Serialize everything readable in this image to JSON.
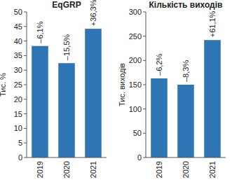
{
  "chart_data": [
    {
      "type": "bar",
      "title": "EqGRP",
      "y_label": "Тис. %",
      "categories": [
        "2019",
        "2020",
        "2021"
      ],
      "values": [
        38.3,
        32.4,
        44.2
      ],
      "annotations": [
        "–6,1%",
        "–15,5%",
        "+36,3%"
      ],
      "color": "#2e75b6",
      "ylim": [
        0,
        50
      ],
      "yticks": [
        0,
        5,
        10,
        15,
        20,
        25,
        30,
        35,
        40,
        45,
        50
      ]
    },
    {
      "type": "bar",
      "title": "Кількість виходів",
      "y_label": "Тис. виходів",
      "categories": [
        "2019",
        "2020",
        "2021"
      ],
      "values": [
        163,
        150,
        242
      ],
      "annotations": [
        "–6,2%",
        "–8,3%",
        "+61,1%"
      ],
      "color": "#2e75b6",
      "ylim": [
        0,
        300
      ],
      "yticks": [
        0,
        50,
        100,
        150,
        200,
        250,
        300
      ]
    }
  ]
}
